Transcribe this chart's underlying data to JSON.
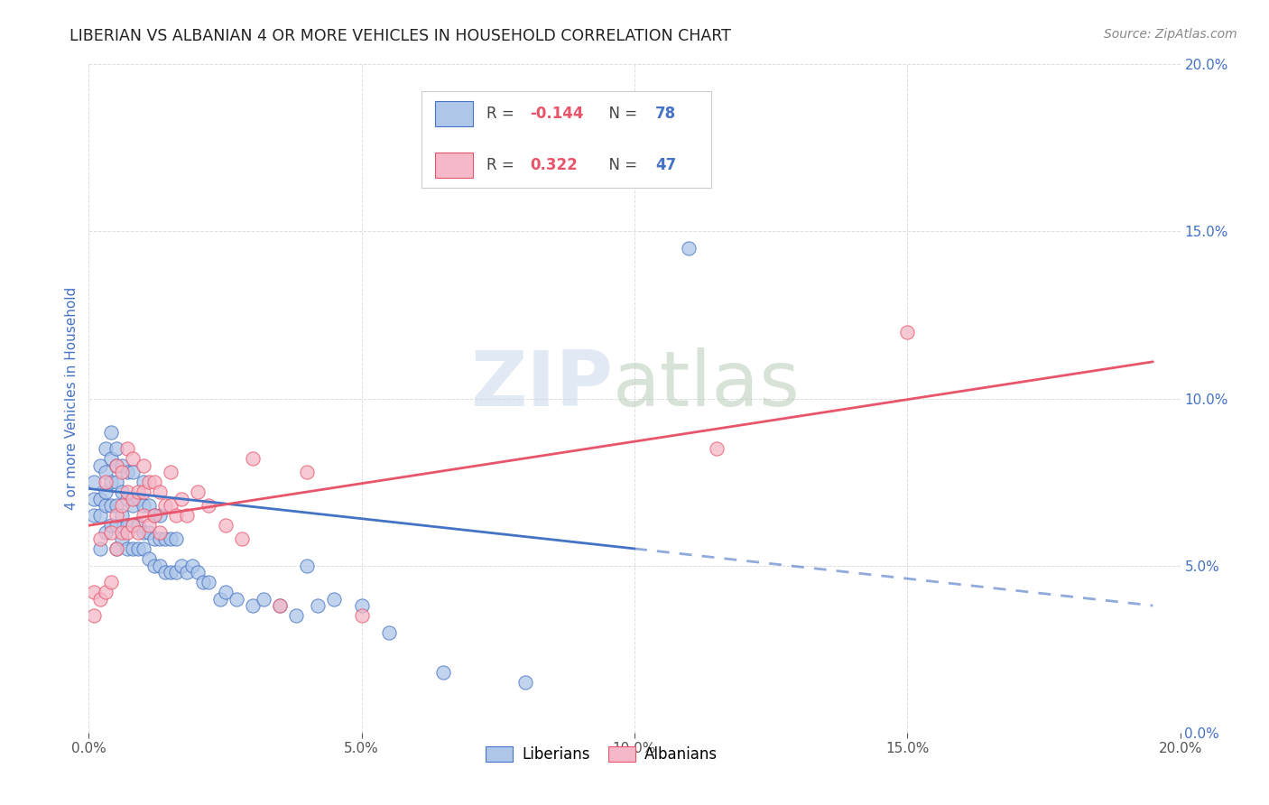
{
  "title": "LIBERIAN VS ALBANIAN 4 OR MORE VEHICLES IN HOUSEHOLD CORRELATION CHART",
  "source": "Source: ZipAtlas.com",
  "ylabel": "4 or more Vehicles in Household",
  "xlim": [
    0.0,
    0.2
  ],
  "ylim": [
    0.0,
    0.2
  ],
  "xticks": [
    0.0,
    0.05,
    0.1,
    0.15,
    0.2
  ],
  "yticks": [
    0.0,
    0.05,
    0.1,
    0.15,
    0.2
  ],
  "xtick_labels": [
    "0.0%",
    "5.0%",
    "10.0%",
    "15.0%",
    "20.0%"
  ],
  "ytick_labels": [
    "0.0%",
    "5.0%",
    "10.0%",
    "15.0%",
    "20.0%"
  ],
  "liberian_color": "#aec6e8",
  "albanian_color": "#f4b8c8",
  "liberian_line_color": "#4472c4",
  "albanian_line_color": "#e8546a",
  "liberian_R": -0.144,
  "liberian_N": 78,
  "albanian_R": 0.322,
  "albanian_N": 47,
  "background_color": "#ffffff",
  "grid_color": "#dddddd",
  "liberian_x": [
    0.001,
    0.001,
    0.001,
    0.002,
    0.002,
    0.002,
    0.002,
    0.003,
    0.003,
    0.003,
    0.003,
    0.003,
    0.004,
    0.004,
    0.004,
    0.004,
    0.004,
    0.005,
    0.005,
    0.005,
    0.005,
    0.005,
    0.005,
    0.006,
    0.006,
    0.006,
    0.006,
    0.007,
    0.007,
    0.007,
    0.007,
    0.008,
    0.008,
    0.008,
    0.008,
    0.009,
    0.009,
    0.009,
    0.01,
    0.01,
    0.01,
    0.01,
    0.011,
    0.011,
    0.011,
    0.012,
    0.012,
    0.012,
    0.013,
    0.013,
    0.013,
    0.014,
    0.014,
    0.015,
    0.015,
    0.016,
    0.016,
    0.017,
    0.018,
    0.019,
    0.02,
    0.021,
    0.022,
    0.024,
    0.025,
    0.027,
    0.03,
    0.032,
    0.035,
    0.038,
    0.04,
    0.042,
    0.045,
    0.05,
    0.055,
    0.065,
    0.08,
    0.11
  ],
  "liberian_y": [
    0.065,
    0.07,
    0.075,
    0.055,
    0.065,
    0.07,
    0.08,
    0.06,
    0.068,
    0.072,
    0.078,
    0.085,
    0.062,
    0.068,
    0.075,
    0.082,
    0.09,
    0.055,
    0.062,
    0.068,
    0.075,
    0.08,
    0.085,
    0.058,
    0.065,
    0.072,
    0.08,
    0.055,
    0.062,
    0.07,
    0.078,
    0.055,
    0.062,
    0.068,
    0.078,
    0.055,
    0.062,
    0.07,
    0.055,
    0.06,
    0.068,
    0.075,
    0.052,
    0.06,
    0.068,
    0.05,
    0.058,
    0.065,
    0.05,
    0.058,
    0.065,
    0.048,
    0.058,
    0.048,
    0.058,
    0.048,
    0.058,
    0.05,
    0.048,
    0.05,
    0.048,
    0.045,
    0.045,
    0.04,
    0.042,
    0.04,
    0.038,
    0.04,
    0.038,
    0.035,
    0.05,
    0.038,
    0.04,
    0.038,
    0.03,
    0.018,
    0.015,
    0.145
  ],
  "albanian_x": [
    0.001,
    0.001,
    0.002,
    0.002,
    0.003,
    0.003,
    0.004,
    0.004,
    0.005,
    0.005,
    0.005,
    0.006,
    0.006,
    0.006,
    0.007,
    0.007,
    0.007,
    0.008,
    0.008,
    0.008,
    0.009,
    0.009,
    0.01,
    0.01,
    0.01,
    0.011,
    0.011,
    0.012,
    0.012,
    0.013,
    0.013,
    0.014,
    0.015,
    0.015,
    0.016,
    0.017,
    0.018,
    0.02,
    0.022,
    0.025,
    0.028,
    0.03,
    0.035,
    0.04,
    0.05,
    0.115,
    0.15
  ],
  "albanian_y": [
    0.035,
    0.042,
    0.04,
    0.058,
    0.042,
    0.075,
    0.045,
    0.06,
    0.055,
    0.065,
    0.08,
    0.06,
    0.068,
    0.078,
    0.06,
    0.072,
    0.085,
    0.062,
    0.07,
    0.082,
    0.06,
    0.072,
    0.065,
    0.072,
    0.08,
    0.062,
    0.075,
    0.065,
    0.075,
    0.06,
    0.072,
    0.068,
    0.068,
    0.078,
    0.065,
    0.07,
    0.065,
    0.072,
    0.068,
    0.062,
    0.058,
    0.082,
    0.038,
    0.078,
    0.035,
    0.085,
    0.12
  ],
  "lib_line_x0": 0.0,
  "lib_line_y0": 0.073,
  "lib_line_x1": 0.1,
  "lib_line_y1": 0.058,
  "lib_line_x1_solid": 0.1,
  "lib_line_x1_dash": 0.195,
  "lib_line_y1_dash": 0.038,
  "alb_line_x0": 0.0,
  "alb_line_y0": 0.062,
  "alb_line_x1": 0.195,
  "alb_line_y1": 0.111
}
